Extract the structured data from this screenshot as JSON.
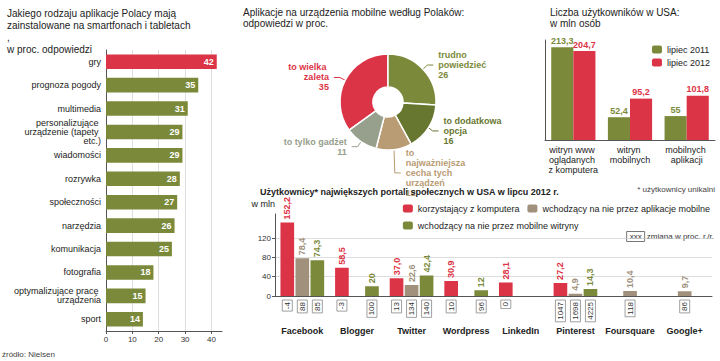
{
  "chart_data": [
    {
      "type": "bar",
      "orientation": "horizontal",
      "title": "Jakiego rodzaju aplikacje Polacy mają zainstalowane na smartfonach i tabletach,",
      "subtitle": "w proc. odpowiedzi",
      "source": "źródło: Nielsen",
      "categories": [
        "gry",
        "prognoza pogody",
        "multimedia",
        "personalizujące urządzenie (tapety etc.)",
        "wiadomości",
        "rozrywka",
        "społeczności",
        "narzędzia",
        "komunikacja",
        "fotografia",
        "optymalizujące pracę urządzenia",
        "sport"
      ],
      "values": [
        42,
        35,
        31,
        29,
        29,
        28,
        27,
        26,
        25,
        18,
        15,
        14
      ],
      "colors": [
        "#dc3447",
        "#7b8a3a",
        "#7b8a3a",
        "#7b8a3a",
        "#7b8a3a",
        "#7b8a3a",
        "#7b8a3a",
        "#7b8a3a",
        "#7b8a3a",
        "#7b8a3a",
        "#7b8a3a",
        "#7b8a3a"
      ],
      "xlim": [
        0,
        44
      ],
      "xticks": [
        0,
        10,
        20,
        30,
        40
      ],
      "grid": true,
      "data_labels": true
    },
    {
      "type": "pie",
      "title": "Aplikacje na urządzenia mobilne według Polaków:",
      "subtitle": "odpowiedzi w proc.",
      "categories": [
        "to wielka zaleta",
        "trudno powiedzieć",
        "to dodatkowa opcja",
        "to najważniejsza cecha tych urządzeń",
        "to tylko gadżet"
      ],
      "values": [
        35,
        26,
        16,
        12,
        11
      ],
      "colors": [
        "#dc3447",
        "#7b8a3a",
        "#68772f",
        "#b99c74",
        "#96a08c"
      ],
      "data_labels": true
    },
    {
      "type": "bar",
      "title": "Liczba użytkowników w USA:",
      "subtitle": "w mln osób",
      "categories": [
        "witryn www oglądanych z komputera",
        "witryn mobilnych",
        "mobilnych aplikacji"
      ],
      "series": [
        {
          "name": "lipiec 2011",
          "color": "#7b8a3a",
          "values": [
            213.3,
            52.4,
            55
          ],
          "value_labels": [
            "213,3",
            "52,4",
            "55"
          ]
        },
        {
          "name": "lipiec 2012",
          "color": "#dc3447",
          "values": [
            204.7,
            95.2,
            101.8
          ],
          "value_labels": [
            "204,7",
            "95,2",
            "101,8"
          ]
        }
      ],
      "ylim": [
        0,
        230
      ],
      "yticks": [],
      "grid": false,
      "legend": "top-right",
      "data_labels": true,
      "tick_labels": "x"
    },
    {
      "type": "bar",
      "title": "Użytkownicy* największych portali społecznych w USA w lipcu 2012 r.",
      "note": "* użytkownicy unikalni",
      "y_label": "w mln",
      "change_sample": "xxx",
      "change_note": "zmiana w proc. r./r.",
      "categories": [
        "Facebook",
        "Blogger",
        "Twitter",
        "Wordpress",
        "LinkedIn",
        "Pinterest",
        "Foursquare",
        "Google+"
      ],
      "series": [
        {
          "name": "korzystający z komputera",
          "color": "#dc3447",
          "values": [
            152.2,
            58.5,
            37.0,
            30.9,
            28.1,
            27.2,
            null,
            null
          ],
          "value_labels": [
            "152,2",
            "58,5",
            "37,0",
            "30,9",
            "28,1",
            "27,2",
            null,
            null
          ],
          "changes": [
            -4,
            -3,
            13,
            10,
            0,
            1047,
            null,
            null
          ]
        },
        {
          "name": "wchodzący na nie przez aplikacje mobilne",
          "color": "#a0907c",
          "values": [
            78.4,
            null,
            22.6,
            null,
            null,
            4.9,
            10.4,
            9.7
          ],
          "value_labels": [
            "78,4",
            null,
            "22,6",
            null,
            null,
            "4,9",
            "10,4",
            "9,7"
          ],
          "changes": [
            88,
            null,
            134,
            null,
            null,
            1698,
            118,
            86
          ]
        },
        {
          "name": "wchodzący na nie przez mobilne witryny",
          "color": "#7b8a3a",
          "values": [
            74.3,
            20,
            42.4,
            12,
            null,
            14.3,
            null,
            null
          ],
          "value_labels": [
            "74,3",
            "20",
            "42,4",
            "12",
            null,
            "14,3",
            null,
            null
          ],
          "changes": [
            85,
            100,
            140,
            96,
            null,
            4225,
            null,
            null
          ]
        }
      ],
      "ylim": [
        0,
        170
      ],
      "yticks": [
        0,
        40,
        80,
        120
      ],
      "grid": true,
      "legend": "top-right",
      "data_labels": true
    }
  ]
}
